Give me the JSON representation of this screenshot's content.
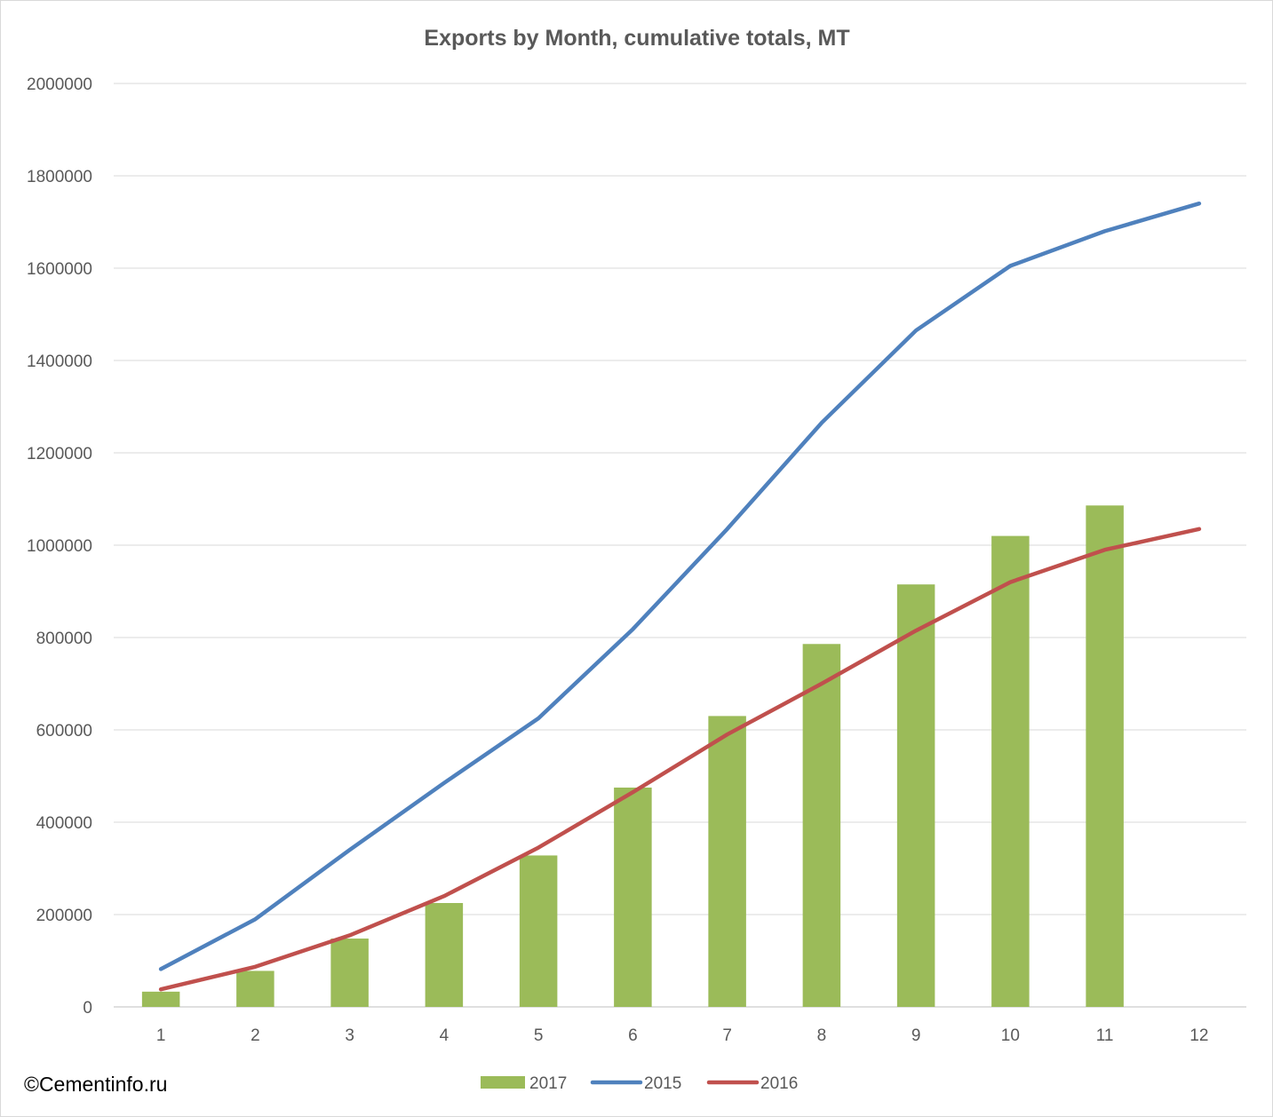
{
  "chart_data": {
    "type": "bar",
    "title": "Exports by Month, cumulative totals, MT",
    "xlabel": "",
    "ylabel": "",
    "categories": [
      "1",
      "2",
      "3",
      "4",
      "5",
      "6",
      "7",
      "8",
      "9",
      "10",
      "11",
      "12"
    ],
    "ylim": [
      0,
      2000000
    ],
    "yticks": [
      "0",
      "200000",
      "400000",
      "600000",
      "800000",
      "1000000",
      "1200000",
      "1400000",
      "1600000",
      "1800000",
      "2000000"
    ],
    "grid": true,
    "legend_position": "bottom",
    "series": [
      {
        "name": "2017",
        "kind": "bar",
        "color": "#9BBB59",
        "values": [
          33000,
          78000,
          148000,
          225000,
          328000,
          475000,
          630000,
          786000,
          915000,
          1020000,
          1086000,
          null
        ]
      },
      {
        "name": "2015",
        "kind": "line",
        "color": "#4F81BD",
        "values": [
          82000,
          190000,
          340000,
          485000,
          625000,
          818000,
          1035000,
          1265000,
          1465000,
          1605000,
          1680000,
          1740000
        ]
      },
      {
        "name": "2016",
        "kind": "line",
        "color": "#C0504D",
        "values": [
          38000,
          87000,
          155000,
          240000,
          345000,
          465000,
          590000,
          700000,
          815000,
          920000,
          990000,
          1035000
        ]
      }
    ]
  },
  "footer": {
    "copyright": "©Cementinfo.ru"
  }
}
